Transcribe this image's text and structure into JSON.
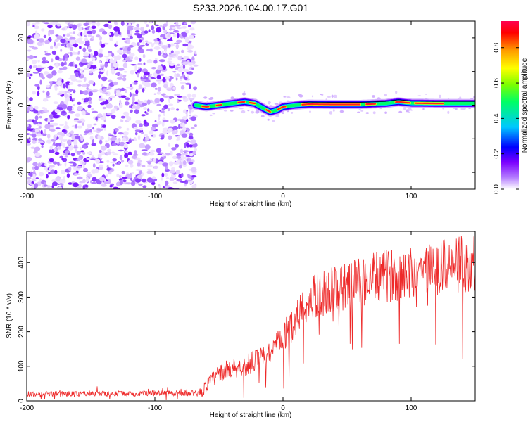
{
  "title": "S233.2026.104.00.17.G01",
  "chart_data": [
    {
      "type": "heatmap",
      "name": "spectrogram",
      "xlabel": "Height of straight line (km)",
      "ylabel": "Frequency (Hz)",
      "xlim": [
        -200,
        150
      ],
      "ylim": [
        -25,
        25
      ],
      "x_ticks": [
        -200,
        -100,
        0,
        100
      ],
      "y_ticks": [
        20,
        10,
        0,
        -10,
        -20
      ],
      "noise_region_x": [
        -200,
        -68
      ],
      "signal_ridge": {
        "x": [
          -68,
          -60,
          -50,
          -40,
          -30,
          -22,
          -15,
          -10,
          -5,
          0,
          10,
          20,
          40,
          60,
          80,
          90,
          100,
          120,
          150
        ],
        "freq": [
          0,
          -0.5,
          0,
          0.5,
          1,
          0.5,
          -1,
          -2,
          -1.5,
          -0.5,
          0,
          0.3,
          0.2,
          0.2,
          0.5,
          1,
          0.6,
          0.5,
          0.5
        ]
      },
      "colorbar": {
        "label": "Normalized spectral amplitude",
        "range": [
          0,
          0.95
        ],
        "ticks": [
          "0.0",
          "0.2",
          "0.4",
          "0.6",
          "0.8"
        ],
        "colors": [
          "#ffffff",
          "#b47cff",
          "#7b00ff",
          "#0000ff",
          "#00c8ff",
          "#00ff64",
          "#7aff00",
          "#ffff00",
          "#ff9600",
          "#ff0000",
          "#ff0050"
        ]
      }
    },
    {
      "type": "line",
      "name": "snr",
      "xlabel": "Height of straight line (km)",
      "ylabel": "SNR (10 * v/v)",
      "xlim": [
        -200,
        150
      ],
      "ylim": [
        0,
        490
      ],
      "x_ticks": [
        -200,
        -100,
        0,
        100
      ],
      "y_ticks": [
        0,
        100,
        200,
        300,
        400
      ],
      "color": "#ee2a2a",
      "trend": {
        "x": [
          -200,
          -150,
          -100,
          -65,
          -58,
          -50,
          -40,
          -30,
          -20,
          -10,
          0,
          10,
          20,
          30,
          40,
          60,
          80,
          100,
          120,
          140,
          150
        ],
        "y": [
          20,
          20,
          22,
          22,
          50,
          80,
          95,
          100,
          120,
          140,
          180,
          240,
          290,
          310,
          320,
          345,
          360,
          375,
          385,
          395,
          400
        ]
      }
    }
  ]
}
